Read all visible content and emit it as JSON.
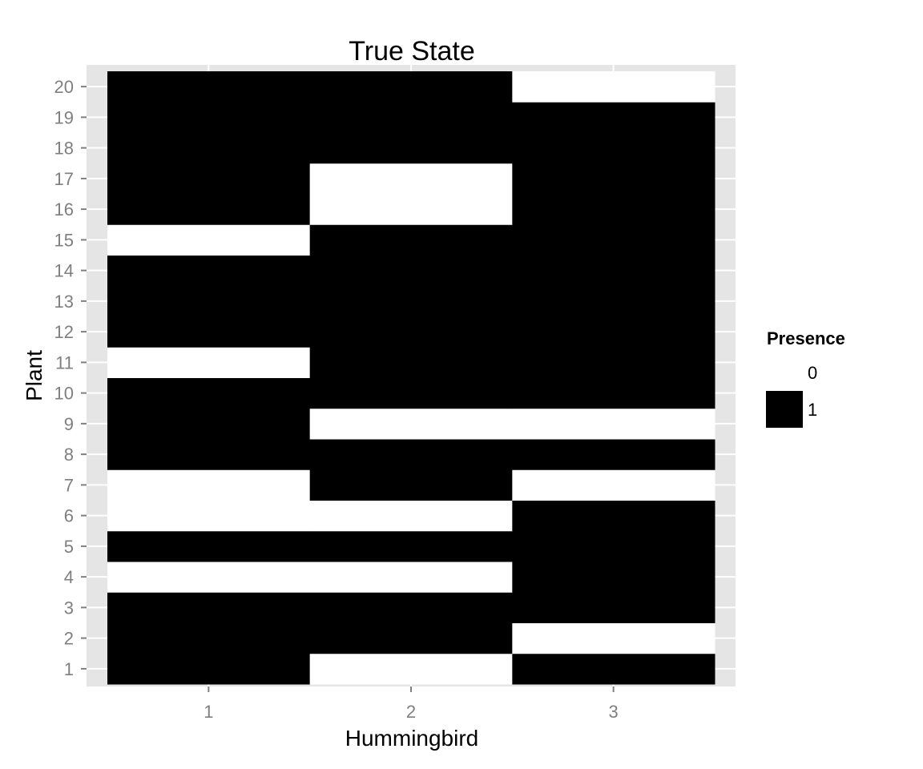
{
  "chart_data": {
    "type": "heatmap",
    "title": "True State",
    "xlabel": "Hummingbird",
    "ylabel": "Plant",
    "x_categories": [
      "1",
      "2",
      "3"
    ],
    "y_categories": [
      "1",
      "2",
      "3",
      "4",
      "5",
      "6",
      "7",
      "8",
      "9",
      "10",
      "11",
      "12",
      "13",
      "14",
      "15",
      "16",
      "17",
      "18",
      "19",
      "20"
    ],
    "values": [
      [
        1,
        0,
        1
      ],
      [
        1,
        1,
        0
      ],
      [
        1,
        1,
        1
      ],
      [
        0,
        0,
        1
      ],
      [
        1,
        1,
        1
      ],
      [
        0,
        0,
        1
      ],
      [
        0,
        1,
        0
      ],
      [
        1,
        1,
        1
      ],
      [
        1,
        0,
        0
      ],
      [
        1,
        1,
        1
      ],
      [
        0,
        1,
        1
      ],
      [
        1,
        1,
        1
      ],
      [
        1,
        1,
        1
      ],
      [
        1,
        1,
        1
      ],
      [
        0,
        1,
        1
      ],
      [
        1,
        0,
        1
      ],
      [
        1,
        0,
        1
      ],
      [
        1,
        1,
        1
      ],
      [
        1,
        1,
        1
      ],
      [
        1,
        1,
        0
      ]
    ],
    "colors": {
      "0": "#ffffff",
      "1": "#000000"
    },
    "panel_background": "#e5e5e5",
    "grid": true,
    "legend": {
      "title": "Presence",
      "position": "right",
      "entries": [
        {
          "label": "0",
          "color": "#ffffff"
        },
        {
          "label": "1",
          "color": "#000000"
        }
      ]
    }
  }
}
